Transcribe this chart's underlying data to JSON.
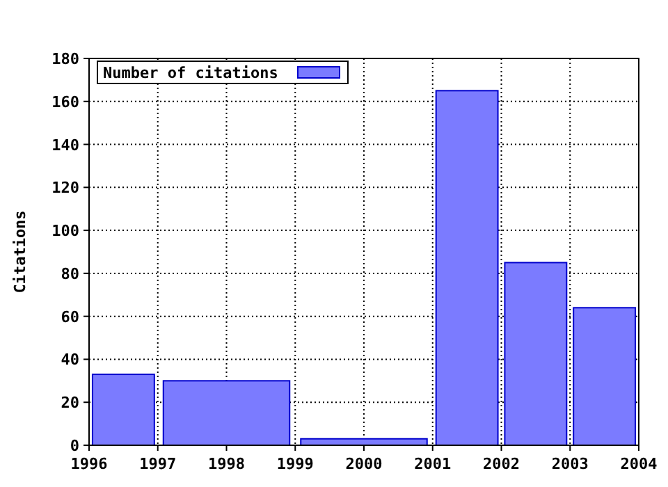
{
  "chart_data": {
    "type": "histogram",
    "ylabel": "Citations",
    "bins": [
      1996,
      1997,
      1999,
      2001,
      2002,
      2003,
      2004
    ],
    "series": [
      {
        "name": "Number of citations",
        "color": "#7b7bff",
        "values": [
          33,
          30,
          3,
          165,
          85,
          64
        ]
      }
    ],
    "xlim": [
      1996,
      2004
    ],
    "xticks": [
      1996,
      1997,
      1998,
      1999,
      2000,
      2001,
      2002,
      2003,
      2004
    ],
    "ylim": [
      0,
      180
    ],
    "yticks": [
      0,
      20,
      40,
      60,
      80,
      100,
      120,
      140,
      160,
      180
    ],
    "grid": true,
    "legend": "top left"
  }
}
